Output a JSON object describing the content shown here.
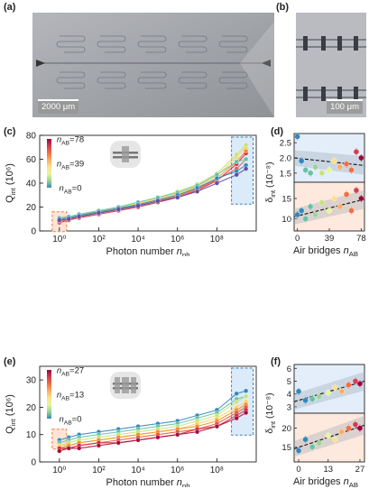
{
  "panels": {
    "a": "(a)",
    "b": "(b)",
    "c": "(c)",
    "d": "(d)",
    "e": "(e)",
    "f": "(f)"
  },
  "micrographs": {
    "a_scale": "2000 μm",
    "b_scale": "100 μm"
  },
  "chart_data": [
    {
      "panel": "(c)",
      "type": "line",
      "xlabel_main": "Photon number ",
      "xlabel_sym": "n",
      "xlabel_sub": "ph",
      "ylabel_main": "Q",
      "ylabel_sub": "int",
      "ylabel_unit": " (10⁶)",
      "xscale": "log",
      "xlim": [
        0.1,
        10000000000
      ],
      "ylim": [
        0,
        80
      ],
      "xticks": [
        "10⁰",
        "10²",
        "10⁴",
        "10⁶",
        "10⁸"
      ],
      "yticks": [
        "0",
        "20",
        "40",
        "60",
        "80"
      ],
      "colorbar_labels": [
        "78",
        "39",
        "0"
      ],
      "legend_sym": "n",
      "legend_sub": "AB",
      "x": [
        1,
        3,
        10,
        100,
        1000,
        10000,
        100000,
        1000000,
        10000000,
        100000000,
        1000000000,
        3000000000
      ],
      "series": [
        {
          "color": "#d7263d",
          "values": [
            7,
            9,
            11,
            14,
            17,
            20,
            24,
            28,
            34,
            42,
            56,
            65
          ]
        },
        {
          "color": "#e8553a",
          "values": [
            8,
            10,
            12,
            15,
            18,
            21,
            25,
            29,
            35,
            43,
            52,
            60
          ]
        },
        {
          "color": "#f28e2b",
          "values": [
            9,
            10,
            12,
            15,
            18,
            22,
            26,
            30,
            36,
            44,
            58,
            67
          ]
        },
        {
          "color": "#fdd35c",
          "values": [
            10,
            11,
            13,
            16,
            19,
            23,
            27,
            31,
            37,
            46,
            62,
            70
          ]
        },
        {
          "color": "#c7e37a",
          "values": [
            10,
            12,
            14,
            17,
            20,
            24,
            28,
            33,
            39,
            48,
            64,
            72
          ]
        },
        {
          "color": "#66c2a5",
          "values": [
            11,
            12,
            14,
            17,
            20,
            24,
            28,
            32,
            38,
            47,
            58,
            60
          ]
        },
        {
          "color": "#3288bd",
          "values": [
            10,
            11,
            13,
            16,
            19,
            22,
            26,
            30,
            36,
            44,
            50,
            55
          ]
        },
        {
          "color": "#5e4fa2",
          "values": [
            9,
            10,
            12,
            15,
            18,
            21,
            25,
            28,
            33,
            40,
            47,
            52
          ]
        }
      ]
    },
    {
      "panel": "(d)",
      "type": "scatter",
      "xlabel_main": "Air bridges ",
      "xlabel_sym": "n",
      "xlabel_sub": "AB",
      "ylabel_main": "δ",
      "ylabel_sub": "int",
      "ylabel_unit": " (10⁻⁸)",
      "xlim": [
        -4,
        82
      ],
      "xticks": [
        "0",
        "39",
        "78"
      ],
      "top": {
        "ylim": [
          1.2,
          2.8
        ],
        "yticks": [
          "1.5",
          "2.0",
          "2.5"
        ],
        "points": [
          {
            "x": 0,
            "y": 2.7,
            "color": "#3288bd"
          },
          {
            "x": 5,
            "y": 1.9,
            "color": "#3288bd"
          },
          {
            "x": 10,
            "y": 1.6,
            "color": "#66c2a5"
          },
          {
            "x": 16,
            "y": 1.5,
            "color": "#66c2a5"
          },
          {
            "x": 22,
            "y": 1.7,
            "color": "#99d594"
          },
          {
            "x": 30,
            "y": 1.5,
            "color": "#c7e37a"
          },
          {
            "x": 39,
            "y": 1.6,
            "color": "#e6f598"
          },
          {
            "x": 45,
            "y": 1.9,
            "color": "#fee08b"
          },
          {
            "x": 52,
            "y": 1.7,
            "color": "#fdae61"
          },
          {
            "x": 60,
            "y": 1.8,
            "color": "#f46d43"
          },
          {
            "x": 66,
            "y": 1.6,
            "color": "#f46d43"
          },
          {
            "x": 72,
            "y": 2.2,
            "color": "#d53e4f"
          },
          {
            "x": 78,
            "y": 2.0,
            "color": "#9e0142"
          }
        ],
        "fit": [
          2.0,
          1.75
        ]
      },
      "bottom": {
        "ylim": [
          7,
          19
        ],
        "yticks": [
          "10",
          "15"
        ],
        "points": [
          {
            "x": 0,
            "y": 11,
            "color": "#3288bd"
          },
          {
            "x": 5,
            "y": 12,
            "color": "#3288bd"
          },
          {
            "x": 10,
            "y": 10,
            "color": "#66c2a5"
          },
          {
            "x": 16,
            "y": 13,
            "color": "#66c2a5"
          },
          {
            "x": 22,
            "y": 11,
            "color": "#99d594"
          },
          {
            "x": 30,
            "y": 14,
            "color": "#c7e37a"
          },
          {
            "x": 39,
            "y": 12,
            "color": "#e6f598"
          },
          {
            "x": 45,
            "y": 15,
            "color": "#fee08b"
          },
          {
            "x": 52,
            "y": 13,
            "color": "#fdae61"
          },
          {
            "x": 60,
            "y": 16,
            "color": "#f46d43"
          },
          {
            "x": 66,
            "y": 12,
            "color": "#f46d43"
          },
          {
            "x": 72,
            "y": 17,
            "color": "#d53e4f"
          },
          {
            "x": 78,
            "y": 15,
            "color": "#9e0142"
          }
        ],
        "fit": [
          10.5,
          14.8
        ]
      }
    },
    {
      "panel": "(e)",
      "type": "line",
      "xlabel_main": "Photon number ",
      "xlabel_sym": "n",
      "xlabel_sub": "ph",
      "ylabel_main": "Q",
      "ylabel_sub": "int",
      "ylabel_unit": " (10⁶)",
      "xscale": "log",
      "xlim": [
        0.1,
        10000000000
      ],
      "ylim": [
        0,
        35
      ],
      "xticks": [
        "10⁰",
        "10²",
        "10⁴",
        "10⁶",
        "10⁸"
      ],
      "yticks": [
        "0",
        "10",
        "20",
        "30"
      ],
      "colorbar_labels": [
        "27",
        "13",
        "0"
      ],
      "legend_sym": "n",
      "legend_sub": "AB",
      "x": [
        1,
        3,
        10,
        100,
        1000,
        10000,
        100000,
        1000000,
        10000000,
        100000000,
        1000000000,
        3000000000
      ],
      "series": [
        {
          "color": "#3288bd",
          "values": [
            8,
            9,
            10,
            11,
            12,
            13,
            14,
            15,
            17,
            19,
            25,
            26
          ]
        },
        {
          "color": "#66c2a5",
          "values": [
            7,
            8,
            9,
            10,
            11,
            12,
            13,
            14,
            16,
            18,
            23,
            24
          ]
        },
        {
          "color": "#c7e37a",
          "values": [
            6,
            7,
            8,
            9,
            10,
            11,
            12,
            13,
            15,
            17,
            22,
            24
          ]
        },
        {
          "color": "#fdd35c",
          "values": [
            6,
            6,
            7,
            8,
            9,
            10,
            11,
            12,
            14,
            16,
            20,
            22
          ]
        },
        {
          "color": "#f28e2b",
          "values": [
            5,
            6,
            7,
            8,
            9,
            10,
            11,
            12,
            13,
            15,
            19,
            21
          ]
        },
        {
          "color": "#e8553a",
          "values": [
            5,
            5,
            6,
            7,
            8,
            9,
            10,
            11,
            12,
            14,
            18,
            20
          ]
        },
        {
          "color": "#d7263d",
          "values": [
            5,
            5,
            6,
            7,
            7,
            8,
            9,
            10,
            12,
            13,
            17,
            19
          ]
        },
        {
          "color": "#a50f3a",
          "values": [
            4,
            5,
            5,
            6,
            7,
            8,
            9,
            10,
            11,
            13,
            16,
            18
          ]
        }
      ]
    },
    {
      "panel": "(f)",
      "type": "scatter",
      "xlabel_main": "Air bridges ",
      "xlabel_sym": "n",
      "xlabel_sub": "AB",
      "ylabel_main": "δ",
      "ylabel_sub": "int",
      "ylabel_unit": " (10⁻⁸)",
      "xlim": [
        -2,
        29
      ],
      "xticks": [
        "0",
        "13",
        "27"
      ],
      "top": {
        "ylim": [
          2.5,
          6.3
        ],
        "yticks": [
          "3",
          "4",
          "5",
          "6"
        ],
        "points": [
          {
            "x": 0,
            "y": 4.2,
            "color": "#3288bd"
          },
          {
            "x": 3,
            "y": 3.5,
            "color": "#3288bd"
          },
          {
            "x": 6,
            "y": 3.6,
            "color": "#66c2a5"
          },
          {
            "x": 9,
            "y": 3.8,
            "color": "#99d594"
          },
          {
            "x": 13,
            "y": 4.1,
            "color": "#e6f598"
          },
          {
            "x": 16,
            "y": 4.5,
            "color": "#fee08b"
          },
          {
            "x": 19,
            "y": 4.2,
            "color": "#fdae61"
          },
          {
            "x": 22,
            "y": 4.7,
            "color": "#f46d43"
          },
          {
            "x": 25,
            "y": 5.0,
            "color": "#d53e4f"
          },
          {
            "x": 27,
            "y": 4.8,
            "color": "#9e0142"
          }
        ],
        "fit": [
          3.4,
          5.0
        ]
      },
      "bottom": {
        "ylim": [
          11,
          24
        ],
        "yticks": [
          "15",
          "20"
        ],
        "points": [
          {
            "x": 0,
            "y": 14,
            "color": "#3288bd"
          },
          {
            "x": 3,
            "y": 17,
            "color": "#3288bd"
          },
          {
            "x": 6,
            "y": 15,
            "color": "#66c2a5"
          },
          {
            "x": 9,
            "y": 16,
            "color": "#99d594"
          },
          {
            "x": 13,
            "y": 18,
            "color": "#e6f598"
          },
          {
            "x": 16,
            "y": 17,
            "color": "#fee08b"
          },
          {
            "x": 19,
            "y": 19,
            "color": "#fdae61"
          },
          {
            "x": 22,
            "y": 20,
            "color": "#f46d43"
          },
          {
            "x": 25,
            "y": 21,
            "color": "#d53e4f"
          },
          {
            "x": 27,
            "y": 20,
            "color": "#9e0142"
          }
        ],
        "fit": [
          14.5,
          20.8
        ]
      }
    }
  ]
}
